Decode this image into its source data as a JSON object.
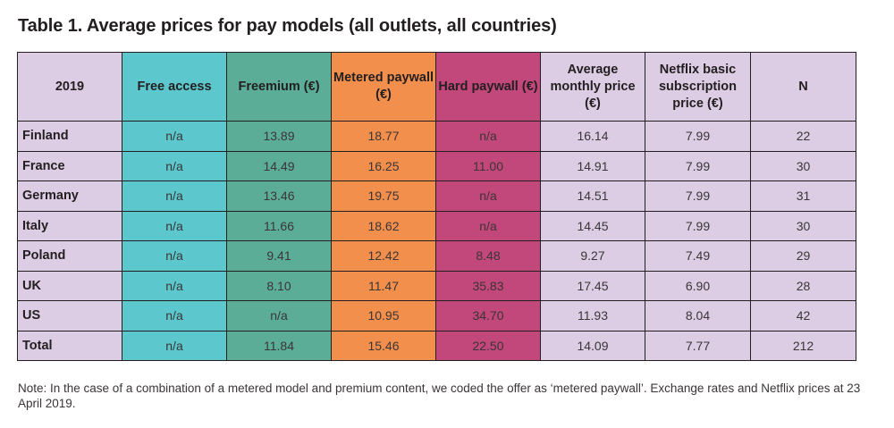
{
  "title": "Table 1. Average prices for pay models (all outlets, all countries)",
  "colors": {
    "header_grey": "#dccde4",
    "free_access": "#5cc7cc",
    "freemium": "#5bad98",
    "metered": "#f38f4c",
    "hard_paywall": "#c2477a"
  },
  "table": {
    "headers": [
      "2019",
      "Free access",
      "Freemium (€)",
      "Metered paywall (€)",
      "Hard paywall (€)",
      "Average monthly price (€)",
      "Netflix basic subscription price (€)",
      "N"
    ],
    "rows": [
      [
        "Finland",
        "n/a",
        "13.89",
        "18.77",
        "n/a",
        "16.14",
        "7.99",
        "22"
      ],
      [
        "France",
        "n/a",
        "14.49",
        "16.25",
        "11.00",
        "14.91",
        "7.99",
        "30"
      ],
      [
        "Germany",
        "n/a",
        "13.46",
        "19.75",
        "n/a",
        "14.51",
        "7.99",
        "31"
      ],
      [
        "Italy",
        "n/a",
        "11.66",
        "18.62",
        "n/a",
        "14.45",
        "7.99",
        "30"
      ],
      [
        "Poland",
        "n/a",
        "9.41",
        "12.42",
        "8.48",
        "9.27",
        "7.49",
        "29"
      ],
      [
        "UK",
        "n/a",
        "8.10",
        "11.47",
        "35.83",
        "17.45",
        "6.90",
        "28"
      ],
      [
        "US",
        "n/a",
        "n/a",
        "10.95",
        "34.70",
        "11.93",
        "8.04",
        "42"
      ],
      [
        "Total",
        "n/a",
        "11.84",
        "15.46",
        "22.50",
        "14.09",
        "7.77",
        "212"
      ]
    ]
  },
  "note": "Note: In the case of a combination of a metered model and premium content, we coded the offer as ‘metered paywall’. Exchange rates and Netflix prices at 23 April 2019."
}
